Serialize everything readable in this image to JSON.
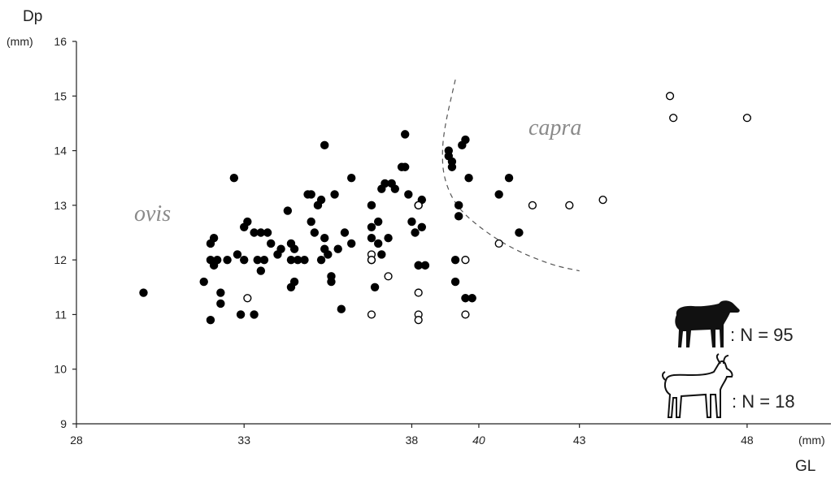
{
  "chart_data": {
    "type": "scatter",
    "title": "",
    "xlabel": "GL",
    "ylabel": "Dp",
    "x_unit": "(mm)",
    "y_unit": "(mm)",
    "xlim": [
      28,
      50.5
    ],
    "ylim": [
      9,
      16
    ],
    "x_ticks": [
      28,
      33,
      38,
      40,
      43,
      48
    ],
    "x_tick_labels": [
      "28",
      "33",
      "38",
      "40",
      "43",
      "48"
    ],
    "y_ticks": [
      9,
      10,
      11,
      12,
      13,
      14,
      15,
      16
    ],
    "y_tick_labels": [
      "9",
      "10",
      "11",
      "12",
      "13",
      "14",
      "15",
      "16"
    ],
    "annotations": [
      "ovis",
      "capra"
    ],
    "separator_curve": [
      [
        39.3,
        15.3
      ],
      [
        39.0,
        14.5
      ],
      [
        38.9,
        14.0
      ],
      [
        38.95,
        13.5
      ],
      [
        39.3,
        13.0
      ],
      [
        40.0,
        12.6
      ],
      [
        41.0,
        12.2
      ],
      [
        42.2,
        11.9
      ],
      [
        43.0,
        11.8
      ]
    ],
    "series": [
      {
        "marker": "filled-circle",
        "legend": ": N = 95",
        "icon": "sheep-icon",
        "color": "#000000",
        "points": [
          [
            30.0,
            11.4
          ],
          [
            31.8,
            11.6
          ],
          [
            32.0,
            12.0
          ],
          [
            32.0,
            12.3
          ],
          [
            32.1,
            11.9
          ],
          [
            32.1,
            12.4
          ],
          [
            32.2,
            12.0
          ],
          [
            32.3,
            11.4
          ],
          [
            32.3,
            11.2
          ],
          [
            32.5,
            12.0
          ],
          [
            32.0,
            10.9
          ],
          [
            32.7,
            13.5
          ],
          [
            32.8,
            12.1
          ],
          [
            33.0,
            12.0
          ],
          [
            33.0,
            12.6
          ],
          [
            33.1,
            12.7
          ],
          [
            33.3,
            12.5
          ],
          [
            33.4,
            12.0
          ],
          [
            33.5,
            11.8
          ],
          [
            33.5,
            12.5
          ],
          [
            33.6,
            12.0
          ],
          [
            33.7,
            12.5
          ],
          [
            32.9,
            11.0
          ],
          [
            33.3,
            11.0
          ],
          [
            33.8,
            12.3
          ],
          [
            34.0,
            12.1
          ],
          [
            34.1,
            12.2
          ],
          [
            34.3,
            12.9
          ],
          [
            34.4,
            12.3
          ],
          [
            34.4,
            12.0
          ],
          [
            34.5,
            11.6
          ],
          [
            34.5,
            12.2
          ],
          [
            34.4,
            11.5
          ],
          [
            34.6,
            12.0
          ],
          [
            34.8,
            12.0
          ],
          [
            34.9,
            13.2
          ],
          [
            35.0,
            13.2
          ],
          [
            35.0,
            12.7
          ],
          [
            35.1,
            12.5
          ],
          [
            35.2,
            13.0
          ],
          [
            35.3,
            13.1
          ],
          [
            35.4,
            14.1
          ],
          [
            35.3,
            12.0
          ],
          [
            35.4,
            12.4
          ],
          [
            35.5,
            12.1
          ],
          [
            35.6,
            11.7
          ],
          [
            35.6,
            11.6
          ],
          [
            35.7,
            13.2
          ],
          [
            35.8,
            12.2
          ],
          [
            35.4,
            12.2
          ],
          [
            35.9,
            11.1
          ],
          [
            36.0,
            12.5
          ],
          [
            36.2,
            13.5
          ],
          [
            36.2,
            12.3
          ],
          [
            36.8,
            13.0
          ],
          [
            36.8,
            12.6
          ],
          [
            36.8,
            12.4
          ],
          [
            36.8,
            12.0
          ],
          [
            37.0,
            12.3
          ],
          [
            37.0,
            12.7
          ],
          [
            37.1,
            13.3
          ],
          [
            37.2,
            13.4
          ],
          [
            37.3,
            12.4
          ],
          [
            37.4,
            13.4
          ],
          [
            37.5,
            13.3
          ],
          [
            37.7,
            13.7
          ],
          [
            37.8,
            13.7
          ],
          [
            37.8,
            14.3
          ],
          [
            37.9,
            13.2
          ],
          [
            38.0,
            12.7
          ],
          [
            38.1,
            12.5
          ],
          [
            38.2,
            11.9
          ],
          [
            38.3,
            13.1
          ],
          [
            38.3,
            12.6
          ],
          [
            38.2,
            13.0
          ],
          [
            38.4,
            11.9
          ],
          [
            39.1,
            14.0
          ],
          [
            39.2,
            13.8
          ],
          [
            39.2,
            13.7
          ],
          [
            39.1,
            13.9
          ],
          [
            39.6,
            14.2
          ],
          [
            39.5,
            14.1
          ],
          [
            39.7,
            13.5
          ],
          [
            39.4,
            13.0
          ],
          [
            39.4,
            12.8
          ],
          [
            39.3,
            11.6
          ],
          [
            39.6,
            11.3
          ],
          [
            40.6,
            13.2
          ],
          [
            40.9,
            13.5
          ],
          [
            41.2,
            12.5
          ],
          [
            39.3,
            12.0
          ],
          [
            36.9,
            11.5
          ],
          [
            37.1,
            12.1
          ],
          [
            38.2,
            11.9
          ],
          [
            39.8,
            11.3
          ]
        ]
      },
      {
        "marker": "open-circle",
        "legend": ": N = 18",
        "icon": "goat-icon",
        "color": "#000000",
        "points": [
          [
            33.1,
            11.3
          ],
          [
            36.8,
            12.1
          ],
          [
            36.8,
            12.0
          ],
          [
            36.8,
            11.0
          ],
          [
            37.3,
            11.7
          ],
          [
            38.2,
            13.0
          ],
          [
            38.2,
            11.4
          ],
          [
            38.2,
            11.0
          ],
          [
            38.2,
            10.9
          ],
          [
            39.6,
            12.0
          ],
          [
            39.6,
            11.0
          ],
          [
            40.6,
            12.3
          ],
          [
            41.6,
            13.0
          ],
          [
            42.7,
            13.0
          ],
          [
            43.7,
            13.1
          ],
          [
            45.7,
            15.0
          ],
          [
            45.8,
            14.6
          ],
          [
            48.0,
            14.6
          ]
        ]
      }
    ]
  }
}
